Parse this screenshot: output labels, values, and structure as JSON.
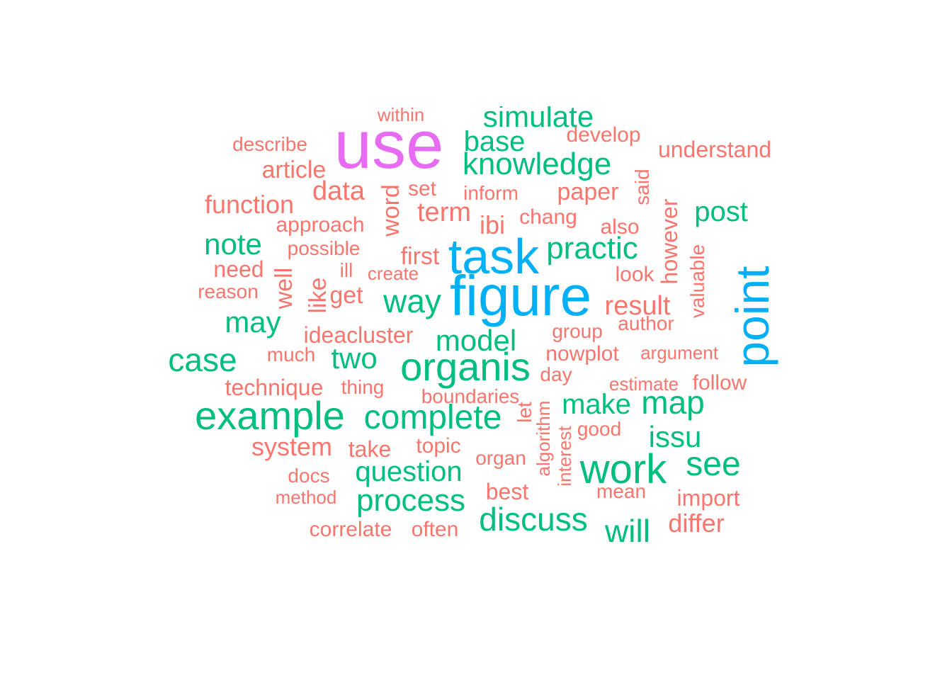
{
  "palette": {
    "magenta": "#e76bf3",
    "blue": "#00b0f6",
    "green": "#00bf7d",
    "salmon": "#f8766d"
  },
  "words": [
    {
      "text": "use",
      "color": "magenta",
      "size": 96
    },
    {
      "text": "figure",
      "color": "blue",
      "size": 80
    },
    {
      "text": "task",
      "color": "blue",
      "size": 70
    },
    {
      "text": "point",
      "color": "blue",
      "size": 66,
      "vertical": true
    },
    {
      "text": "organis",
      "color": "green",
      "size": 56
    },
    {
      "text": "example",
      "color": "green",
      "size": 56
    },
    {
      "text": "work",
      "color": "green",
      "size": 58
    },
    {
      "text": "complete",
      "color": "green",
      "size": 48
    },
    {
      "text": "case",
      "color": "green",
      "size": 46
    },
    {
      "text": "knowledge",
      "color": "green",
      "size": 44
    },
    {
      "text": "simulate",
      "color": "green",
      "size": 42
    },
    {
      "text": "way",
      "color": "green",
      "size": 46
    },
    {
      "text": "map",
      "color": "green",
      "size": 46
    },
    {
      "text": "see",
      "color": "green",
      "size": 48
    },
    {
      "text": "discuss",
      "color": "green",
      "size": 46
    },
    {
      "text": "process",
      "color": "green",
      "size": 44
    },
    {
      "text": "practic",
      "color": "green",
      "size": 44
    },
    {
      "text": "model",
      "color": "green",
      "size": 42
    },
    {
      "text": "will",
      "color": "green",
      "size": 46
    },
    {
      "text": "base",
      "color": "green",
      "size": 40
    },
    {
      "text": "note",
      "color": "green",
      "size": 42
    },
    {
      "text": "may",
      "color": "green",
      "size": 42
    },
    {
      "text": "two",
      "color": "green",
      "size": 42
    },
    {
      "text": "make",
      "color": "green",
      "size": 40
    },
    {
      "text": "question",
      "color": "green",
      "size": 40
    },
    {
      "text": "issu",
      "color": "green",
      "size": 42
    },
    {
      "text": "post",
      "color": "green",
      "size": 40
    },
    {
      "text": "term",
      "color": "salmon",
      "size": 38
    },
    {
      "text": "data",
      "color": "salmon",
      "size": 38
    },
    {
      "text": "result",
      "color": "salmon",
      "size": 38
    },
    {
      "text": "function",
      "color": "salmon",
      "size": 36
    },
    {
      "text": "system",
      "color": "salmon",
      "size": 36
    },
    {
      "text": "paper",
      "color": "salmon",
      "size": 34
    },
    {
      "text": "first",
      "color": "salmon",
      "size": 34
    },
    {
      "text": "ibi",
      "color": "salmon",
      "size": 36
    },
    {
      "text": "differ",
      "color": "salmon",
      "size": 36
    },
    {
      "text": "article",
      "color": "salmon",
      "size": 34
    },
    {
      "text": "understand",
      "color": "salmon",
      "size": 32
    },
    {
      "text": "ideacluster",
      "color": "salmon",
      "size": 32
    },
    {
      "text": "technique",
      "color": "salmon",
      "size": 32
    },
    {
      "text": "import",
      "color": "salmon",
      "size": 32
    },
    {
      "text": "take",
      "color": "salmon",
      "size": 32
    },
    {
      "text": "get",
      "color": "salmon",
      "size": 34
    },
    {
      "text": "need",
      "color": "salmon",
      "size": 32
    },
    {
      "text": "best",
      "color": "salmon",
      "size": 32
    },
    {
      "text": "approach",
      "color": "salmon",
      "size": 30
    },
    {
      "text": "develop",
      "color": "salmon",
      "size": 30
    },
    {
      "text": "nowplot",
      "color": "salmon",
      "size": 30
    },
    {
      "text": "topic",
      "color": "salmon",
      "size": 30
    },
    {
      "text": "correlate",
      "color": "salmon",
      "size": 30
    },
    {
      "text": "often",
      "color": "salmon",
      "size": 30
    },
    {
      "text": "well",
      "color": "salmon",
      "size": 34,
      "vertical": true
    },
    {
      "text": "like",
      "color": "salmon",
      "size": 34,
      "vertical": true
    },
    {
      "text": "word",
      "color": "salmon",
      "size": 34,
      "vertical": true
    },
    {
      "text": "however",
      "color": "salmon",
      "size": 32,
      "vertical": true
    },
    {
      "text": "chang",
      "color": "salmon",
      "size": 30
    },
    {
      "text": "also",
      "color": "salmon",
      "size": 30
    },
    {
      "text": "look",
      "color": "salmon",
      "size": 30
    },
    {
      "text": "set",
      "color": "salmon",
      "size": 30
    },
    {
      "text": "describe",
      "color": "salmon",
      "size": 28
    },
    {
      "text": "possible",
      "color": "salmon",
      "size": 28
    },
    {
      "text": "inform",
      "color": "salmon",
      "size": 28
    },
    {
      "text": "reason",
      "color": "salmon",
      "size": 28
    },
    {
      "text": "group",
      "color": "salmon",
      "size": 28
    },
    {
      "text": "much",
      "color": "salmon",
      "size": 28
    },
    {
      "text": "thing",
      "color": "salmon",
      "size": 28
    },
    {
      "text": "boundaries",
      "color": "salmon",
      "size": 28
    },
    {
      "text": "day",
      "color": "salmon",
      "size": 28
    },
    {
      "text": "follow",
      "color": "salmon",
      "size": 30
    },
    {
      "text": "good",
      "color": "salmon",
      "size": 28
    },
    {
      "text": "organ",
      "color": "salmon",
      "size": 28
    },
    {
      "text": "mean",
      "color": "salmon",
      "size": 28
    },
    {
      "text": "docs",
      "color": "salmon",
      "size": 28
    },
    {
      "text": "author",
      "color": "salmon",
      "size": 28
    },
    {
      "text": "argument",
      "color": "salmon",
      "size": 26
    },
    {
      "text": "estimate",
      "color": "salmon",
      "size": 26
    },
    {
      "text": "create",
      "color": "salmon",
      "size": 26
    },
    {
      "text": "ill",
      "color": "salmon",
      "size": 28
    },
    {
      "text": "method",
      "color": "salmon",
      "size": 26
    },
    {
      "text": "within",
      "color": "salmon",
      "size": 26
    },
    {
      "text": "said",
      "color": "salmon",
      "size": 28,
      "vertical": true
    },
    {
      "text": "valuable",
      "color": "salmon",
      "size": 28,
      "vertical": true
    },
    {
      "text": "let",
      "color": "salmon",
      "size": 28,
      "vertical": true
    },
    {
      "text": "algorithm",
      "color": "salmon",
      "size": 26,
      "vertical": true
    },
    {
      "text": "interest",
      "color": "salmon",
      "size": 26,
      "vertical": true
    }
  ]
}
